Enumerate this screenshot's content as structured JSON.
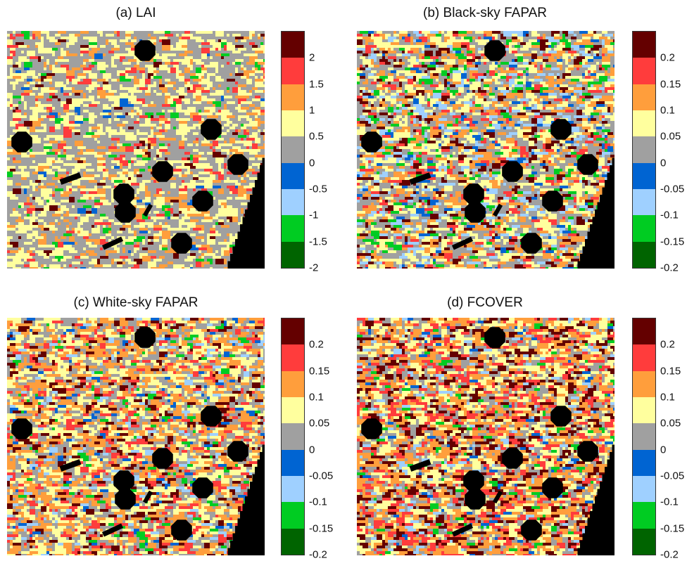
{
  "chart_data": [
    {
      "type": "heatmap",
      "title": "(a) LAI",
      "colorbar": {
        "colors": [
          "#006400",
          "#00cc22",
          "#9fd0ff",
          "#0064d2",
          "#a0a0a0",
          "#ffff9e",
          "#ff9e3c",
          "#ff3c3c",
          "#640000"
        ],
        "ticks": [
          "2",
          "1.5",
          "1",
          "0.5",
          "0",
          "-0.5",
          "-1",
          "-1.5",
          "-2"
        ]
      }
    },
    {
      "type": "heatmap",
      "title": "(b) Black-sky FAPAR",
      "colorbar": {
        "colors": [
          "#006400",
          "#00cc22",
          "#9fd0ff",
          "#0064d2",
          "#a0a0a0",
          "#ffff9e",
          "#ff9e3c",
          "#ff3c3c",
          "#640000"
        ],
        "ticks": [
          "0.2",
          "0.15",
          "0.1",
          "0.05",
          "0",
          "-0.05",
          "-0.1",
          "-0.15",
          "-0.2"
        ]
      }
    },
    {
      "type": "heatmap",
      "title": "(c) White-sky FAPAR",
      "colorbar": {
        "colors": [
          "#006400",
          "#00cc22",
          "#9fd0ff",
          "#0064d2",
          "#a0a0a0",
          "#ffff9e",
          "#ff9e3c",
          "#ff3c3c",
          "#640000"
        ],
        "ticks": [
          "0.2",
          "0.15",
          "0.1",
          "0.05",
          "0",
          "-0.05",
          "-0.1",
          "-0.15",
          "-0.2"
        ]
      }
    },
    {
      "type": "heatmap",
      "title": "(d) FCOVER",
      "colorbar": {
        "colors": [
          "#006400",
          "#00cc22",
          "#9fd0ff",
          "#0064d2",
          "#a0a0a0",
          "#ffff9e",
          "#ff9e3c",
          "#ff3c3c",
          "#640000"
        ],
        "ticks": [
          "0.2",
          "0.15",
          "0.1",
          "0.05",
          "0",
          "-0.05",
          "-0.1",
          "-0.15",
          "-0.2"
        ]
      }
    }
  ]
}
